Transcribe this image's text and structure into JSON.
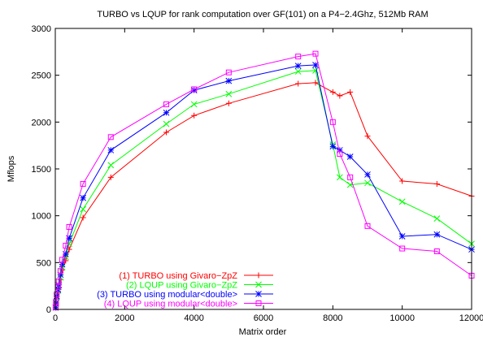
{
  "chart_data": {
    "type": "line",
    "title": "TURBO vs LQUP for rank computation over GF(101) on a P4−2.4Ghz, 512Mb RAM",
    "xlabel": "Matrix order",
    "ylabel": "Mflops",
    "xlim": [
      0,
      12000
    ],
    "ylim": [
      0,
      3000
    ],
    "xticks": [
      0,
      2000,
      4000,
      6000,
      8000,
      10000,
      12000
    ],
    "yticks": [
      0,
      500,
      1000,
      1500,
      2000,
      2500,
      3000
    ],
    "grid": false,
    "legend_position": "bottom-left",
    "series": [
      {
        "name": "(1) TURBO using Givaro−ZpZ",
        "color": "#ff0000",
        "marker": "plus",
        "x": [
          10,
          20,
          40,
          80,
          100,
          150,
          200,
          300,
          400,
          800,
          1600,
          3200,
          4000,
          5000,
          7000,
          7500,
          8000,
          8200,
          8500,
          9000,
          10000,
          11000,
          12000
        ],
        "y": [
          20,
          60,
          120,
          190,
          230,
          320,
          420,
          520,
          640,
          980,
          1410,
          1890,
          2070,
          2200,
          2410,
          2420,
          2320,
          2280,
          2320,
          1850,
          1370,
          1340,
          1210
        ]
      },
      {
        "name": "(2) LQUP using Givaro−ZpZ",
        "color": "#00ff00",
        "marker": "cross",
        "x": [
          10,
          20,
          40,
          80,
          100,
          150,
          200,
          300,
          400,
          800,
          1600,
          3200,
          4000,
          5000,
          7000,
          7500,
          8000,
          8200,
          8500,
          9000,
          10000,
          11000,
          12000
        ],
        "y": [
          20,
          60,
          130,
          200,
          240,
          340,
          450,
          560,
          700,
          1070,
          1540,
          1980,
          2190,
          2300,
          2540,
          2550,
          1760,
          1410,
          1330,
          1350,
          1150,
          970,
          700
        ]
      },
      {
        "name": "(3) TURBO using modular<double>",
        "color": "#0000ff",
        "marker": "star",
        "x": [
          10,
          20,
          40,
          80,
          100,
          150,
          200,
          300,
          400,
          800,
          1600,
          3200,
          4000,
          5000,
          7000,
          7500,
          8000,
          8200,
          8500,
          9000,
          10000,
          11000,
          12000
        ],
        "y": [
          20,
          70,
          140,
          210,
          260,
          370,
          480,
          590,
          760,
          1190,
          1700,
          2100,
          2340,
          2440,
          2600,
          2610,
          1740,
          1700,
          1630,
          1440,
          780,
          800,
          640
        ]
      },
      {
        "name": "(4) LQUP using modular<double>",
        "color": "#ff00ff",
        "marker": "square",
        "x": [
          10,
          20,
          40,
          80,
          100,
          150,
          200,
          300,
          400,
          800,
          1600,
          3200,
          4000,
          5000,
          7000,
          7500,
          8000,
          8200,
          8500,
          9000,
          10000,
          11000,
          12000
        ],
        "y": [
          20,
          80,
          160,
          240,
          300,
          410,
          530,
          680,
          880,
          1340,
          1840,
          2190,
          2350,
          2530,
          2700,
          2730,
          2000,
          1660,
          1410,
          890,
          650,
          620,
          360
        ]
      }
    ]
  }
}
